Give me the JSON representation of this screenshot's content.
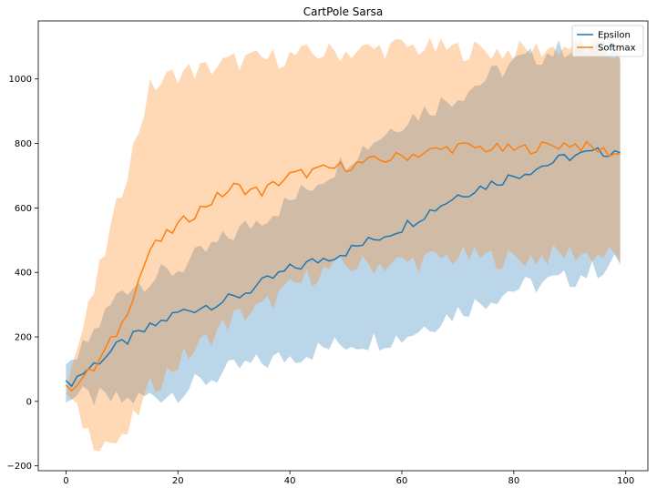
{
  "chart_data": {
    "type": "line",
    "title": "CartPole Sarsa",
    "xlabel": "",
    "ylabel": "",
    "xlim": [
      -4.95,
      103.95
    ],
    "ylim": [
      -215,
      1180
    ],
    "xticks": [
      0,
      20,
      40,
      60,
      80,
      100
    ],
    "yticks": [
      -200,
      0,
      200,
      400,
      600,
      800,
      1000
    ],
    "grid": false,
    "legend_position": "top-right",
    "series": [
      {
        "name": "Epsilon",
        "color": "#1f77b4",
        "x": [
          0,
          10,
          20,
          30,
          40,
          50,
          60,
          70,
          80,
          90,
          99
        ],
        "values": [
          50,
          180,
          275,
          320,
          410,
          465,
          540,
          640,
          700,
          760,
          780
        ],
        "lower": [
          20,
          0,
          30,
          100,
          140,
          180,
          200,
          280,
          350,
          380,
          435
        ],
        "upper": [
          80,
          350,
          410,
          520,
          620,
          750,
          870,
          950,
          1050,
          1100,
          1090
        ]
      },
      {
        "name": "Softmax",
        "color": "#ff7f0e",
        "x": [
          0,
          5,
          10,
          15,
          20,
          25,
          30,
          35,
          40,
          45,
          50,
          60,
          70,
          80,
          90,
          99
        ],
        "values": [
          35,
          100,
          240,
          470,
          545,
          610,
          665,
          650,
          700,
          715,
          730,
          760,
          790,
          780,
          800,
          765
        ],
        "lower": [
          20,
          -120,
          -130,
          40,
          120,
          190,
          260,
          290,
          350,
          400,
          420,
          430,
          450,
          440,
          460,
          450
        ],
        "upper": [
          50,
          340,
          660,
          970,
          1020,
          1030,
          1055,
          1060,
          1070,
          1080,
          1085,
          1100,
          1090,
          1085,
          1100,
          1080
        ]
      }
    ]
  }
}
